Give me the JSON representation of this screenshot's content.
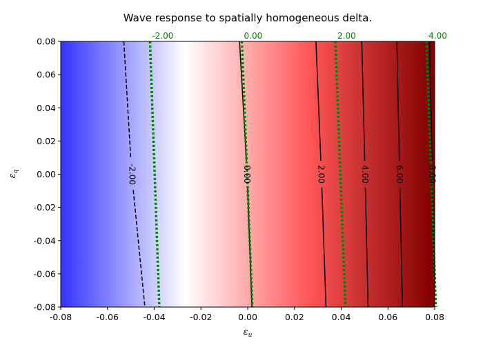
{
  "chart_data": {
    "type": "heatmap",
    "title": "Wave response to spatially homogeneous delta.",
    "xlabel": "ε",
    "xlabel_sub": "u",
    "ylabel": "ε",
    "ylabel_sub": "q",
    "xlim": [
      -0.08,
      0.08
    ],
    "ylim": [
      -0.08,
      0.08
    ],
    "x_ticks": [
      "-0.08",
      "-0.06",
      "-0.04",
      "-0.02",
      "0.00",
      "0.02",
      "0.04",
      "0.06",
      "0.08"
    ],
    "y_ticks": [
      "-0.08",
      "-0.06",
      "-0.04",
      "-0.02",
      "0.00",
      "0.02",
      "0.04",
      "0.06",
      "0.08"
    ],
    "colormap": {
      "stops": [
        {
          "value": -4.0,
          "color": "#3333ff"
        },
        {
          "value": 0.0,
          "color": "#ffffff"
        },
        {
          "value": 4.0,
          "color": "#ff5555"
        },
        {
          "value": 8.0,
          "color": "#800000"
        }
      ]
    },
    "black_contours": [
      {
        "level": -2.0,
        "label": "-2.00",
        "style": "dashed",
        "x_top": -0.053,
        "x_bottom": -0.044,
        "x_label": -0.0495,
        "y_label": 0.0
      },
      {
        "level": 0.0,
        "label": "0.00",
        "style": "solid",
        "x_top": -0.0035,
        "x_bottom": 0.0018,
        "x_label": -0.0003,
        "y_label": 0.0
      },
      {
        "level": 2.0,
        "label": "2.00",
        "style": "solid",
        "x_top": 0.0292,
        "x_bottom": 0.0335,
        "x_label": 0.0315,
        "y_label": 0.0
      },
      {
        "level": 4.0,
        "label": "4.00",
        "style": "solid",
        "x_top": 0.0488,
        "x_bottom": 0.0515,
        "x_label": 0.0502,
        "y_label": 0.0
      },
      {
        "level": 6.0,
        "label": "6.00",
        "style": "solid",
        "x_top": 0.0638,
        "x_bottom": 0.0662,
        "x_label": 0.065,
        "y_label": 0.0
      },
      {
        "level": 8.0,
        "label": "8.00",
        "style": "solid",
        "x_top": 0.0778,
        "x_bottom": 0.0802,
        "x_label": 0.079,
        "y_label": 0.0
      }
    ],
    "green_contours": [
      {
        "level": -2.0,
        "label": "-2.00",
        "x_top": -0.0418,
        "x_bottom": -0.0378
      },
      {
        "level": 0.0,
        "label": "0.00",
        "x_top": -0.0025,
        "x_bottom": 0.002
      },
      {
        "level": 2.0,
        "label": "2.00",
        "x_top": 0.0375,
        "x_bottom": 0.0418
      },
      {
        "level": 4.0,
        "label": "4.00",
        "x_top": 0.0765,
        "x_bottom": 0.0805
      }
    ],
    "colors": {
      "green_contour": "#008000",
      "black_contour": "#000000"
    }
  }
}
